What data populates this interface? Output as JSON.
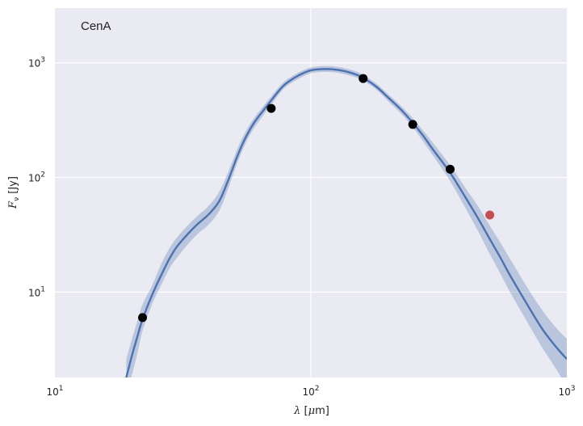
{
  "chart_data": {
    "type": "line",
    "annotation": "CenA",
    "xlabel": {
      "symbol": "λ",
      "unit_open": " [",
      "unit_greek": "μ",
      "unit_rest": "m]"
    },
    "ylabel": {
      "symbol": "F",
      "subscript": "ν",
      "unit": " [Jy]"
    },
    "xscale": "log",
    "yscale": "log",
    "xlim": [
      10,
      1000
    ],
    "ylim": [
      1.8,
      3000
    ],
    "grid": true,
    "x_ticks": [
      {
        "value": 10,
        "base": "10",
        "exp": "1"
      },
      {
        "value": 100,
        "base": "10",
        "exp": "2"
      },
      {
        "value": 1000,
        "base": "10",
        "exp": "3"
      }
    ],
    "y_ticks": [
      {
        "value": 10,
        "base": "10",
        "exp": "1"
      },
      {
        "value": 100,
        "base": "10",
        "exp": "2"
      },
      {
        "value": 1000,
        "base": "10",
        "exp": "3"
      }
    ],
    "series": [
      {
        "kind": "model-fit",
        "color": "#4c72b0",
        "band_color": "#4c72b0",
        "x": [
          19,
          20,
          21,
          22,
          24,
          26,
          28,
          30,
          33,
          36,
          40,
          44,
          48,
          52,
          56,
          60,
          65,
          70,
          75,
          80,
          90,
          100,
          110,
          120,
          130,
          140,
          150,
          160,
          180,
          200,
          225,
          250,
          275,
          300,
          350,
          400,
          450,
          500,
          550,
          600,
          700,
          800,
          900,
          1000
        ],
        "y": [
          1.8,
          2.8,
          4.1,
          5.8,
          9.5,
          14,
          19.5,
          25,
          32,
          39,
          48,
          63,
          100,
          160,
          230,
          300,
          380,
          470,
          570,
          660,
          780,
          860,
          880,
          880,
          860,
          830,
          790,
          740,
          620,
          500,
          390,
          300,
          230,
          175,
          110,
          68,
          44,
          29,
          20,
          14,
          7.8,
          4.8,
          3.4,
          2.6
        ],
        "y_low": [
          1.2,
          1.9,
          2.9,
          4.6,
          7.9,
          11.5,
          16,
          20,
          26,
          32,
          39,
          52,
          85,
          140,
          205,
          270,
          345,
          430,
          530,
          620,
          730,
          810,
          830,
          830,
          810,
          780,
          745,
          700,
          585,
          465,
          360,
          275,
          205,
          155,
          93,
          55,
          34,
          21.5,
          14.5,
          10,
          5.5,
          3.3,
          2.2,
          1.5
        ],
        "y_high": [
          2.6,
          3.9,
          5.6,
          7.8,
          11.5,
          17.5,
          24,
          30,
          38,
          46,
          57,
          76,
          118,
          185,
          258,
          330,
          415,
          510,
          615,
          705,
          830,
          910,
          935,
          935,
          915,
          880,
          840,
          785,
          660,
          535,
          420,
          330,
          255,
          200,
          128,
          82,
          56,
          38,
          27,
          19.5,
          11,
          7,
          5,
          3.9
        ]
      },
      {
        "kind": "observed",
        "color": "#000000",
        "x": [
          22,
          70,
          160,
          250,
          350
        ],
        "y": [
          6.0,
          400,
          730,
          290,
          118
        ]
      },
      {
        "kind": "observed-excluded",
        "color": "#c44e52",
        "x": [
          500
        ],
        "y": [
          47
        ]
      }
    ]
  },
  "colors": {
    "plot_background": "#eaeaf2",
    "gridline": "#ffffff"
  }
}
